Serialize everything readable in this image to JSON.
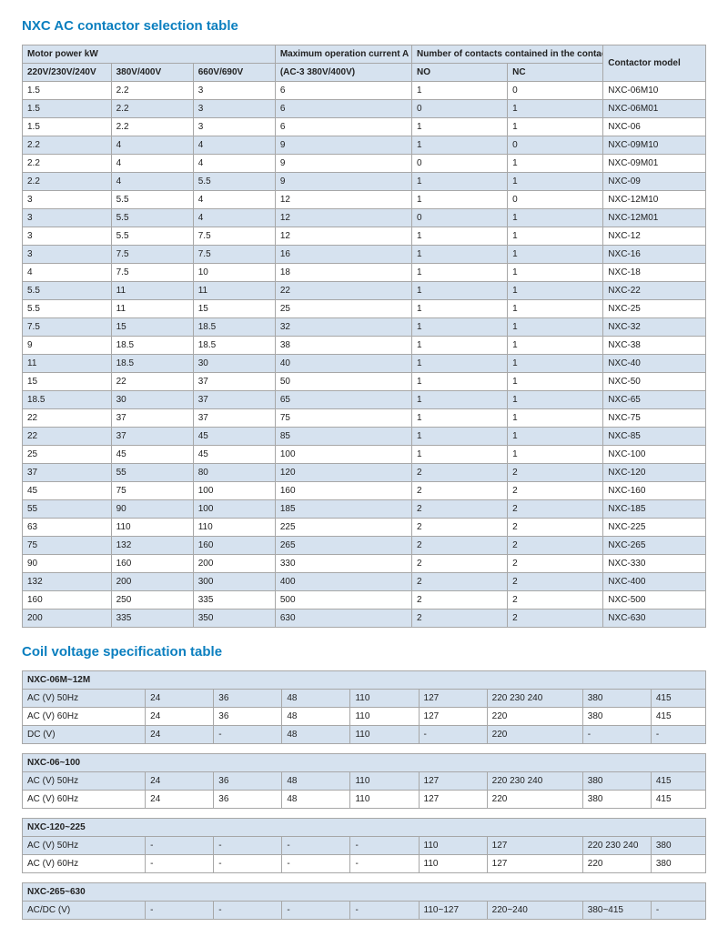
{
  "section1": {
    "title": "NXC AC contactor selection table",
    "group_headers": {
      "motor_power": "Motor power kW",
      "max_current": "Maximum operation current A",
      "contacts": "Number of contacts contained in the contactor body",
      "model": "Contactor model"
    },
    "sub_headers": {
      "v220": "220V/230V/240V",
      "v380": "380V/400V",
      "v660": "660V/690V",
      "ac3": "(AC-3 380V/400V)",
      "no": "NO",
      "nc": "NC"
    },
    "rows": [
      [
        "1.5",
        "2.2",
        "3",
        "6",
        "1",
        "0",
        "NXC-06M10"
      ],
      [
        "1.5",
        "2.2",
        "3",
        "6",
        "0",
        "1",
        "NXC-06M01"
      ],
      [
        "1.5",
        "2.2",
        "3",
        "6",
        "1",
        "1",
        "NXC-06"
      ],
      [
        "2.2",
        "4",
        "4",
        "9",
        "1",
        "0",
        "NXC-09M10"
      ],
      [
        "2.2",
        "4",
        "4",
        "9",
        "0",
        "1",
        "NXC-09M01"
      ],
      [
        "2.2",
        "4",
        "5.5",
        "9",
        "1",
        "1",
        "NXC-09"
      ],
      [
        "3",
        "5.5",
        "4",
        "12",
        "1",
        "0",
        "NXC-12M10"
      ],
      [
        "3",
        "5.5",
        "4",
        "12",
        "0",
        "1",
        "NXC-12M01"
      ],
      [
        "3",
        "5.5",
        "7.5",
        "12",
        "1",
        "1",
        "NXC-12"
      ],
      [
        "3",
        "7.5",
        "7.5",
        "16",
        "1",
        "1",
        "NXC-16"
      ],
      [
        "4",
        "7.5",
        "10",
        "18",
        "1",
        "1",
        "NXC-18"
      ],
      [
        "5.5",
        "11",
        "11",
        "22",
        "1",
        "1",
        "NXC-22"
      ],
      [
        "5.5",
        "11",
        "15",
        "25",
        "1",
        "1",
        "NXC-25"
      ],
      [
        "7.5",
        "15",
        "18.5",
        "32",
        "1",
        "1",
        "NXC-32"
      ],
      [
        "9",
        "18.5",
        "18.5",
        "38",
        "1",
        "1",
        "NXC-38"
      ],
      [
        "11",
        "18.5",
        "30",
        "40",
        "1",
        "1",
        "NXC-40"
      ],
      [
        "15",
        "22",
        "37",
        "50",
        "1",
        "1",
        "NXC-50"
      ],
      [
        "18.5",
        "30",
        "37",
        "65",
        "1",
        "1",
        "NXC-65"
      ],
      [
        "22",
        "37",
        "37",
        "75",
        "1",
        "1",
        "NXC-75"
      ],
      [
        "22",
        "37",
        "45",
        "85",
        "1",
        "1",
        "NXC-85"
      ],
      [
        "25",
        "45",
        "45",
        "100",
        "1",
        "1",
        "NXC-100"
      ],
      [
        "37",
        "55",
        "80",
        "120",
        "2",
        "2",
        "NXC-120"
      ],
      [
        "45",
        "75",
        "100",
        "160",
        "2",
        "2",
        "NXC-160"
      ],
      [
        "55",
        "90",
        "100",
        "185",
        "2",
        "2",
        "NXC-185"
      ],
      [
        "63",
        "110",
        "110",
        "225",
        "2",
        "2",
        "NXC-225"
      ],
      [
        "75",
        "132",
        "160",
        "265",
        "2",
        "2",
        "NXC-265"
      ],
      [
        "90",
        "160",
        "200",
        "330",
        "2",
        "2",
        "NXC-330"
      ],
      [
        "132",
        "200",
        "300",
        "400",
        "2",
        "2",
        "NXC-400"
      ],
      [
        "160",
        "250",
        "335",
        "500",
        "2",
        "2",
        "NXC-500"
      ],
      [
        "200",
        "335",
        "350",
        "630",
        "2",
        "2",
        "NXC-630"
      ]
    ]
  },
  "section2": {
    "title": "Coil voltage specification table",
    "blocks": [
      {
        "header": "NXC-06M~12M",
        "rows": [
          [
            "AC (V) 50Hz",
            "24",
            "36",
            "48",
            "110",
            "127",
            "220 230 240",
            "380",
            "415"
          ],
          [
            "AC (V) 60Hz",
            "24",
            "36",
            "48",
            "110",
            "127",
            "220",
            "380",
            "415"
          ],
          [
            "DC (V)",
            "24",
            "-",
            "48",
            "110",
            "-",
            "220",
            "-",
            "-"
          ]
        ]
      },
      {
        "header": "NXC-06~100",
        "rows": [
          [
            "AC (V) 50Hz",
            "24",
            "36",
            "48",
            "110",
            "127",
            "220 230 240",
            "380",
            "415"
          ],
          [
            "AC (V) 60Hz",
            "24",
            "36",
            "48",
            "110",
            "127",
            "220",
            "380",
            "415"
          ]
        ]
      },
      {
        "header": "NXC-120~225",
        "rows": [
          [
            "AC (V) 50Hz",
            "-",
            "-",
            "-",
            "-",
            "110",
            "127",
            "220 230 240",
            "380"
          ],
          [
            "AC (V) 60Hz",
            "-",
            "-",
            "-",
            "-",
            "110",
            "127",
            "220",
            "380"
          ]
        ]
      },
      {
        "header": "NXC-265~630",
        "rows": [
          [
            "AC/DC (V)",
            "-",
            "-",
            "-",
            "-",
            "110~127",
            "220~240",
            "380~415",
            "-"
          ]
        ]
      }
    ]
  },
  "style": {
    "header_bg": "#d6e2ef",
    "border_color": "#a7a7a7",
    "title_color": "#0b7fbf",
    "font_size_body": 10,
    "font_size_title": 15
  }
}
